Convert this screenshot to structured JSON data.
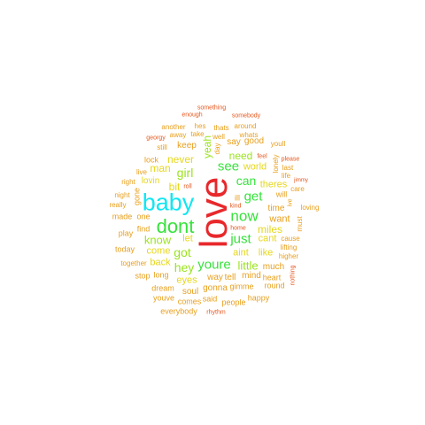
{
  "words": {
    "love": "love",
    "baby": "baby",
    "dont": "dont",
    "now": "now",
    "youre": "youre",
    "just": "just",
    "got": "got",
    "know": "know",
    "get": "get",
    "see": "see",
    "can": "can",
    "girl": "girl",
    "hey": "hey",
    "little": "little",
    "need": "need",
    "never": "never",
    "yeah": "yeah",
    "man": "man",
    "bit": "bit",
    "world": "world",
    "cant": "cant",
    "miles": "miles",
    "want": "want",
    "time": "time",
    "theres": "theres",
    "come": "come",
    "back": "back",
    "let": "let",
    "aint": "aint",
    "like": "like",
    "eyes": "eyes",
    "way": "way",
    "tell": "tell",
    "mind": "mind",
    "heart": "heart",
    "much": "much",
    "gonna": "gonna",
    "soul": "soul",
    "said": "said",
    "comes": "comes",
    "people": "people",
    "happy": "happy",
    "dream": "dream",
    "youve": "youve",
    "everybody": "everybody",
    "rhythm": "rhythm",
    "long": "long",
    "stop": "stop",
    "together": "together",
    "today": "today",
    "play": "play",
    "made": "made",
    "one": "one",
    "find": "find",
    "really": "really",
    "night": "night",
    "right": "right",
    "live": "live",
    "lock": "lock",
    "lovin": "lovin",
    "gone": "gone",
    "still": "still",
    "georgy": "georgy",
    "another": "another",
    "away": "away",
    "enough": "enough",
    "hes": "hes",
    "take": "take",
    "thats": "thats",
    "well": "well",
    "something": "something",
    "somebody": "somebody",
    "around": "around",
    "whats": "whats",
    "feel": "feel",
    "please": "please",
    "youll": "youll",
    "lonely": "lonely",
    "last": "last",
    "life": "life",
    "jimmy": "jimmy",
    "care": "care",
    "ive": "ive",
    "loving": "loving",
    "must": "must",
    "will": "will",
    "cause": "cause",
    "lifting": "lifting",
    "higher": "higher",
    "round": "round",
    "nothing": "nothing",
    "keep": "keep",
    "say": "say",
    "good": "good",
    "day": "day",
    "ill": "ill",
    "kind": "kind",
    "home": "home",
    "roll": "roll",
    "gimme": "gimme"
  }
}
